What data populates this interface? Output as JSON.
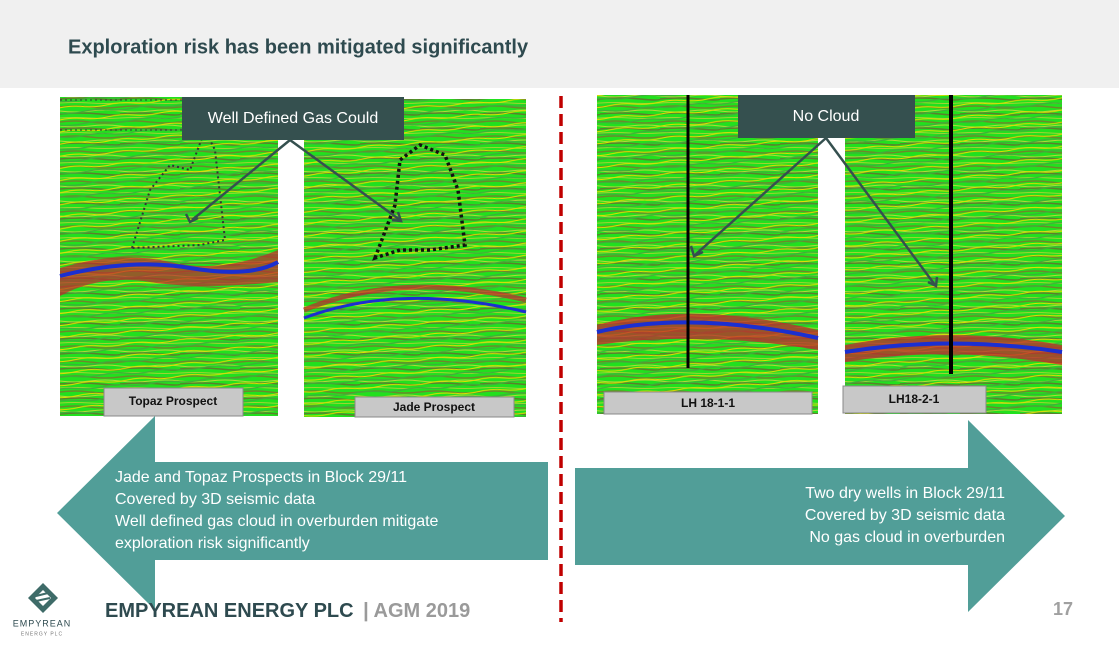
{
  "header": {
    "title": "Exploration risk has been mitigated significantly"
  },
  "callouts": [
    "Well Defined Gas Could",
    "No Cloud"
  ],
  "image_labels": [
    "Topaz Prospect",
    "Jade Prospect",
    "LH 18-1-1",
    "LH18-2-1"
  ],
  "left_arrow": {
    "lines": [
      "Jade and Topaz Prospects  in Block 29/11",
      "Covered by 3D seismic data",
      "Well defined gas cloud in overburden mitigate",
      "exploration risk significantly"
    ]
  },
  "right_arrow": {
    "lines": [
      "Two dry wells in Block 29/11",
      "Covered by 3D seismic data",
      "No gas cloud in overburden"
    ]
  },
  "footer": {
    "company": "EMPYREAN ENERGY PLC",
    "event": "| AGM 2019",
    "page": 17,
    "logo_name": "EMPYREAN",
    "logo_sub": "ENERGY PLC"
  }
}
